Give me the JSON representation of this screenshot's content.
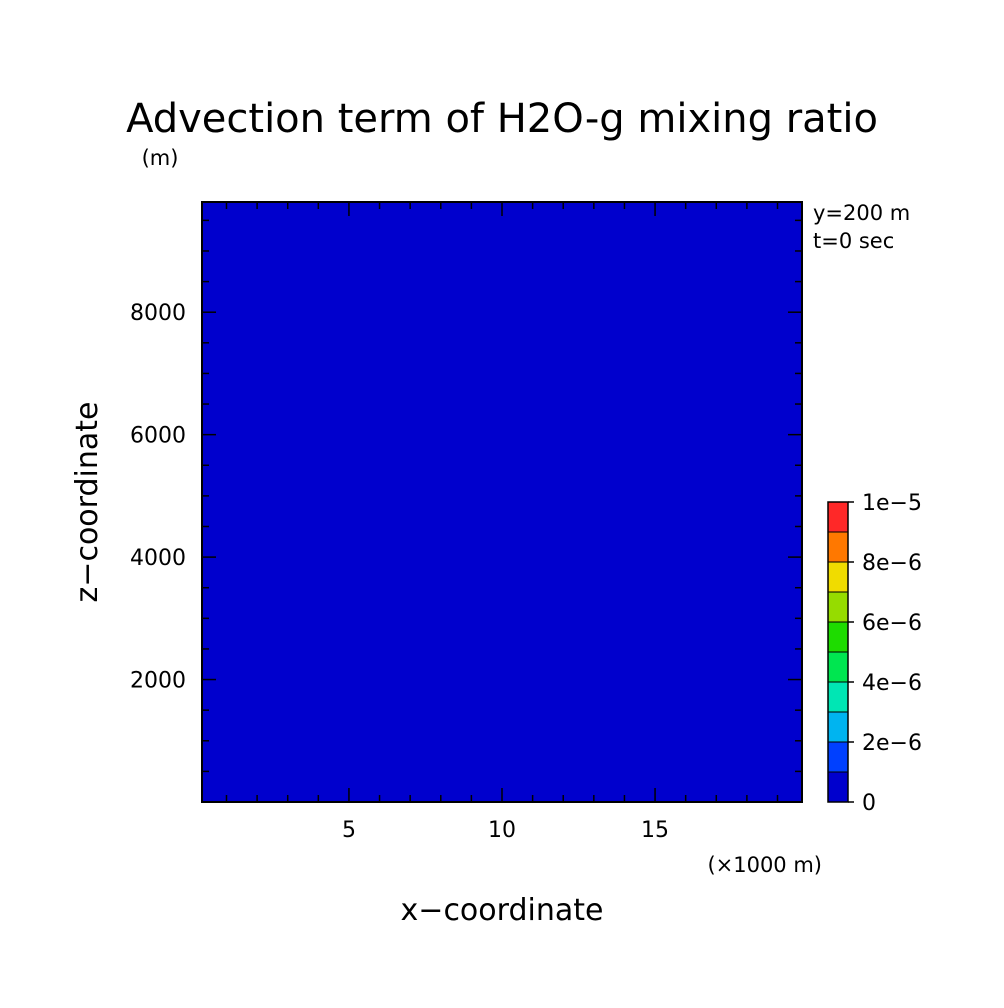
{
  "chart_data": {
    "type": "heatmap",
    "title": "Advection term of H2O-g mixing ratio",
    "xlabel": "x−coordinate",
    "ylabel": "z−coordinate",
    "x_unit": "(×1000 m)",
    "y_unit": "(m)",
    "xlim": [
      0.2,
      19.8
    ],
    "ylim": [
      0,
      9800
    ],
    "x_ticks": [
      5,
      10,
      15
    ],
    "x_tick_labels": [
      "5",
      "10",
      "15"
    ],
    "y_ticks": [
      2000,
      4000,
      6000,
      8000
    ],
    "y_tick_labels": [
      "2000",
      "4000",
      "6000",
      "8000"
    ],
    "field_value": 0,
    "field_color": "#0000cd",
    "annotations": [
      "y=200 m",
      "t=0 sec"
    ],
    "colorbar": {
      "min": 0,
      "max": 1e-05,
      "levels": [
        0,
        1e-06,
        2e-06,
        3e-06,
        4e-06,
        5e-06,
        6e-06,
        7e-06,
        8e-06,
        9e-06,
        1e-05
      ],
      "colors": [
        "#0000cd",
        "#0040ff",
        "#00b4f0",
        "#00e6b4",
        "#00e650",
        "#1edc00",
        "#96dc00",
        "#f0dc00",
        "#ff7800",
        "#ff2828"
      ],
      "tick_values": [
        0,
        2e-06,
        4e-06,
        6e-06,
        8e-06,
        1e-05
      ],
      "tick_labels": [
        "0",
        "2e−6",
        "4e−6",
        "6e−6",
        "8e−6",
        "1e−5"
      ]
    }
  }
}
